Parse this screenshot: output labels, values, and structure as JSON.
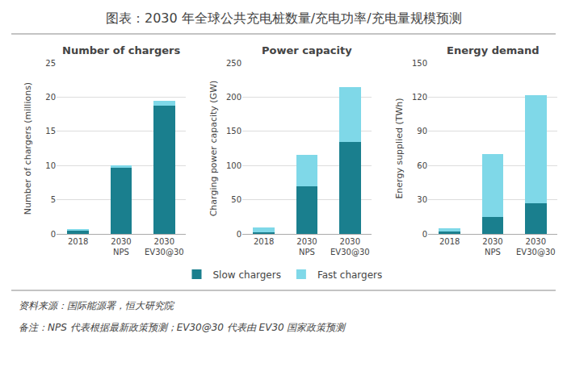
{
  "title": "图表：2030 年全球公共充电桩数量/充电功率/充电量规模预测",
  "annotations": [
    "资料来源：国际能源署，恒大研究院",
    "备注：NPS 代表根据最新政策预测；EV30@30 代表由 EV30 国家政策预测"
  ],
  "legend": "bottom",
  "chart_data": [
    {
      "type": "bar",
      "stacked": true,
      "grid": true,
      "title": "Number of chargers",
      "ylabel": "Number of chargers (millions)",
      "categories": [
        "2018",
        "2030\nNPS",
        "2030\nEV30@30"
      ],
      "series": [
        {
          "name": "Slow chargers",
          "color": "#1a7f8e",
          "values": [
            0.55,
            9.7,
            18.8
          ]
        },
        {
          "name": "Fast chargers",
          "color": "#7fd8e8",
          "values": [
            0.05,
            0.3,
            0.7
          ]
        }
      ],
      "ylim": [
        0,
        25
      ],
      "yticks": [
        0,
        5,
        10,
        15,
        20,
        25
      ]
    },
    {
      "type": "bar",
      "stacked": true,
      "grid": true,
      "title": "Power capacity",
      "ylabel": "Charging power capacity (GW)",
      "categories": [
        "2018",
        "2030\nNPS",
        "2030\nEV30@30"
      ],
      "series": [
        {
          "name": "Slow chargers",
          "color": "#1a7f8e",
          "values": [
            2,
            70,
            135
          ]
        },
        {
          "name": "Fast chargers",
          "color": "#7fd8e8",
          "values": [
            8,
            45,
            80
          ]
        }
      ],
      "ylim": [
        0,
        250
      ],
      "yticks": [
        0,
        50,
        100,
        150,
        200,
        250
      ]
    },
    {
      "type": "bar",
      "stacked": true,
      "grid": true,
      "title": "Energy demand",
      "ylabel": "Energy supplied (TWh)",
      "categories": [
        "2018",
        "2030\nNPS",
        "2030\nEV30@30"
      ],
      "series": [
        {
          "name": "Slow chargers",
          "color": "#1a7f8e",
          "values": [
            2,
            15,
            27
          ]
        },
        {
          "name": "Fast chargers",
          "color": "#7fd8e8",
          "values": [
            3,
            55,
            95
          ]
        }
      ],
      "ylim": [
        0,
        150
      ],
      "yticks": [
        0,
        30,
        60,
        90,
        120,
        150
      ]
    }
  ]
}
